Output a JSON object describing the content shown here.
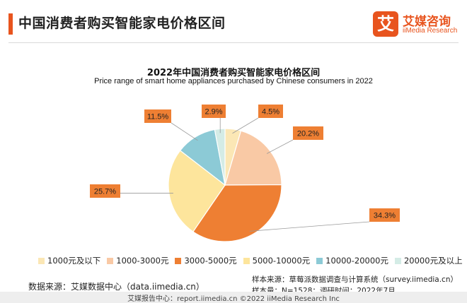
{
  "header": {
    "title": "中国消费者购买智能家电价格区间",
    "accent_color": "#e8541e"
  },
  "logo": {
    "mark": "艾",
    "name_cn": "艾媒咨询",
    "name_en": "iiMedia Research",
    "color": "#e8541e"
  },
  "chart_data": {
    "type": "pie",
    "title": "2022年中国消费者购买智能家电价格区间",
    "subtitle": "Price range of smart home appliances purchased by Chinese consumers in 2022",
    "categories": [
      "1000元及以下",
      "1000-3000元",
      "3000-5000元",
      "5000-10000元",
      "10000-20000元",
      "20000元及以上"
    ],
    "values": [
      4.5,
      20.2,
      34.3,
      25.7,
      11.5,
      2.9
    ],
    "labels": [
      "4.5%",
      "20.2%",
      "34.3%",
      "25.7%",
      "11.5%",
      "2.9%"
    ],
    "colors": [
      "#fbe7b5",
      "#f9c9a5",
      "#ee7f33",
      "#fde59c",
      "#8ccad6",
      "#d4ece6"
    ],
    "label_box_color": "#ee7f33",
    "legend_position": "bottom"
  },
  "footer": {
    "source_left": "数据来源：艾媒数据中心（data.iimedia.cn）",
    "source_right_line1": "样本来源：草莓派数据调查与计算系统（survey.iimedia.cn）",
    "source_right_line2": "样本量：N=1528；调研时间：2022年7月",
    "bottom": "艾媒报告中心：report.iimedia.cn  ©2022 iiMedia Research Inc"
  }
}
